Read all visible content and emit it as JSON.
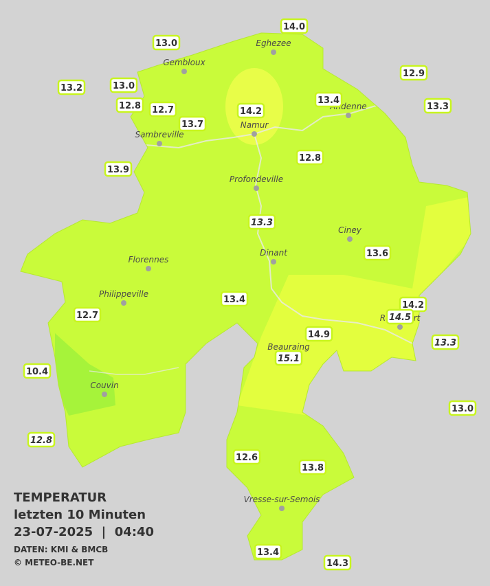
{
  "header": {
    "title": "TEMPERATUR",
    "subtitle": "letzten 10 Minuten",
    "datetime": "23-07-2025  |  04:40",
    "source": "DATEN: KMI & BMCB",
    "copyright": "© METEO-BE.NET"
  },
  "cities": [
    {
      "label": "Eghezee"
    },
    {
      "label": "Gembloux"
    },
    {
      "label": "Andenne"
    },
    {
      "label": "Namur"
    },
    {
      "label": "Sambreville"
    },
    {
      "label": "Profondeville"
    },
    {
      "label": "Ciney"
    },
    {
      "label": "Dinant"
    },
    {
      "label": "Florennes"
    },
    {
      "label": "Philippeville"
    },
    {
      "label": "Rochefort"
    },
    {
      "label": "Beauraing"
    },
    {
      "label": "Couvin"
    },
    {
      "label": "Vresse-sur-Semois"
    }
  ],
  "stations": [
    {
      "label": "14.0",
      "italic": false
    },
    {
      "label": "13.0",
      "italic": false
    },
    {
      "label": "12.9",
      "italic": false
    },
    {
      "label": "13.2",
      "italic": false
    },
    {
      "label": "13.0",
      "italic": false
    },
    {
      "label": "13.4",
      "italic": false
    },
    {
      "label": "13.3",
      "italic": false
    },
    {
      "label": "12.8",
      "italic": false
    },
    {
      "label": "12.7",
      "italic": false
    },
    {
      "label": "14.2",
      "italic": false
    },
    {
      "label": "13.7",
      "italic": false
    },
    {
      "label": "13.9",
      "italic": false
    },
    {
      "label": "12.8",
      "italic": false
    },
    {
      "label": "13.3",
      "italic": true
    },
    {
      "label": "13.6",
      "italic": false
    },
    {
      "label": "13.4",
      "italic": false
    },
    {
      "label": "14.2",
      "italic": false
    },
    {
      "label": "14.5",
      "italic": true
    },
    {
      "label": "12.7",
      "italic": false
    },
    {
      "label": "14.9",
      "italic": false
    },
    {
      "label": "13.3",
      "italic": true
    },
    {
      "label": "15.1",
      "italic": true
    },
    {
      "label": "10.4",
      "italic": false
    },
    {
      "label": "13.0",
      "italic": false
    },
    {
      "label": "12.8",
      "italic": true
    },
    {
      "label": "12.6",
      "italic": false
    },
    {
      "label": "13.8",
      "italic": false
    },
    {
      "label": "13.4",
      "italic": false
    },
    {
      "label": "14.3",
      "italic": false
    }
  ]
}
